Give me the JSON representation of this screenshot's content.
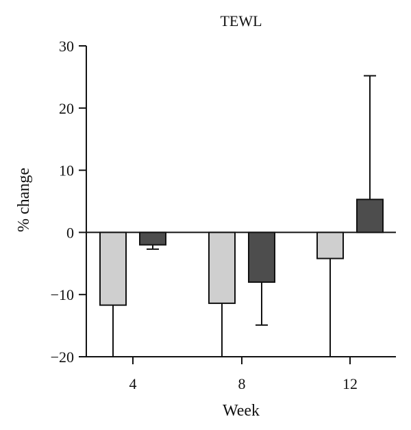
{
  "chart_data": {
    "type": "bar",
    "title": "TEWL",
    "xlabel": "Week",
    "ylabel": "% change",
    "categories": [
      "4",
      "8",
      "12"
    ],
    "ylim": [
      -20,
      30
    ],
    "yticks": [
      -20,
      -10,
      0,
      10,
      20,
      30
    ],
    "ytick_labels": [
      "−20",
      "−10",
      "0",
      "10",
      "20",
      "30"
    ],
    "grid": false,
    "legend": "none",
    "series": [
      {
        "values": [
          -11.7,
          -11.4,
          -4.2
        ],
        "error_low": [
          -20,
          -20,
          -20
        ],
        "error_high": [
          null,
          null,
          null
        ],
        "color": "#cfcfcf"
      },
      {
        "values": [
          -2.0,
          -8.0,
          5.3
        ],
        "error_low": [
          -2.7,
          -14.9,
          null
        ],
        "error_high": [
          null,
          null,
          25.2
        ],
        "color": "#4d4d4d"
      }
    ]
  }
}
